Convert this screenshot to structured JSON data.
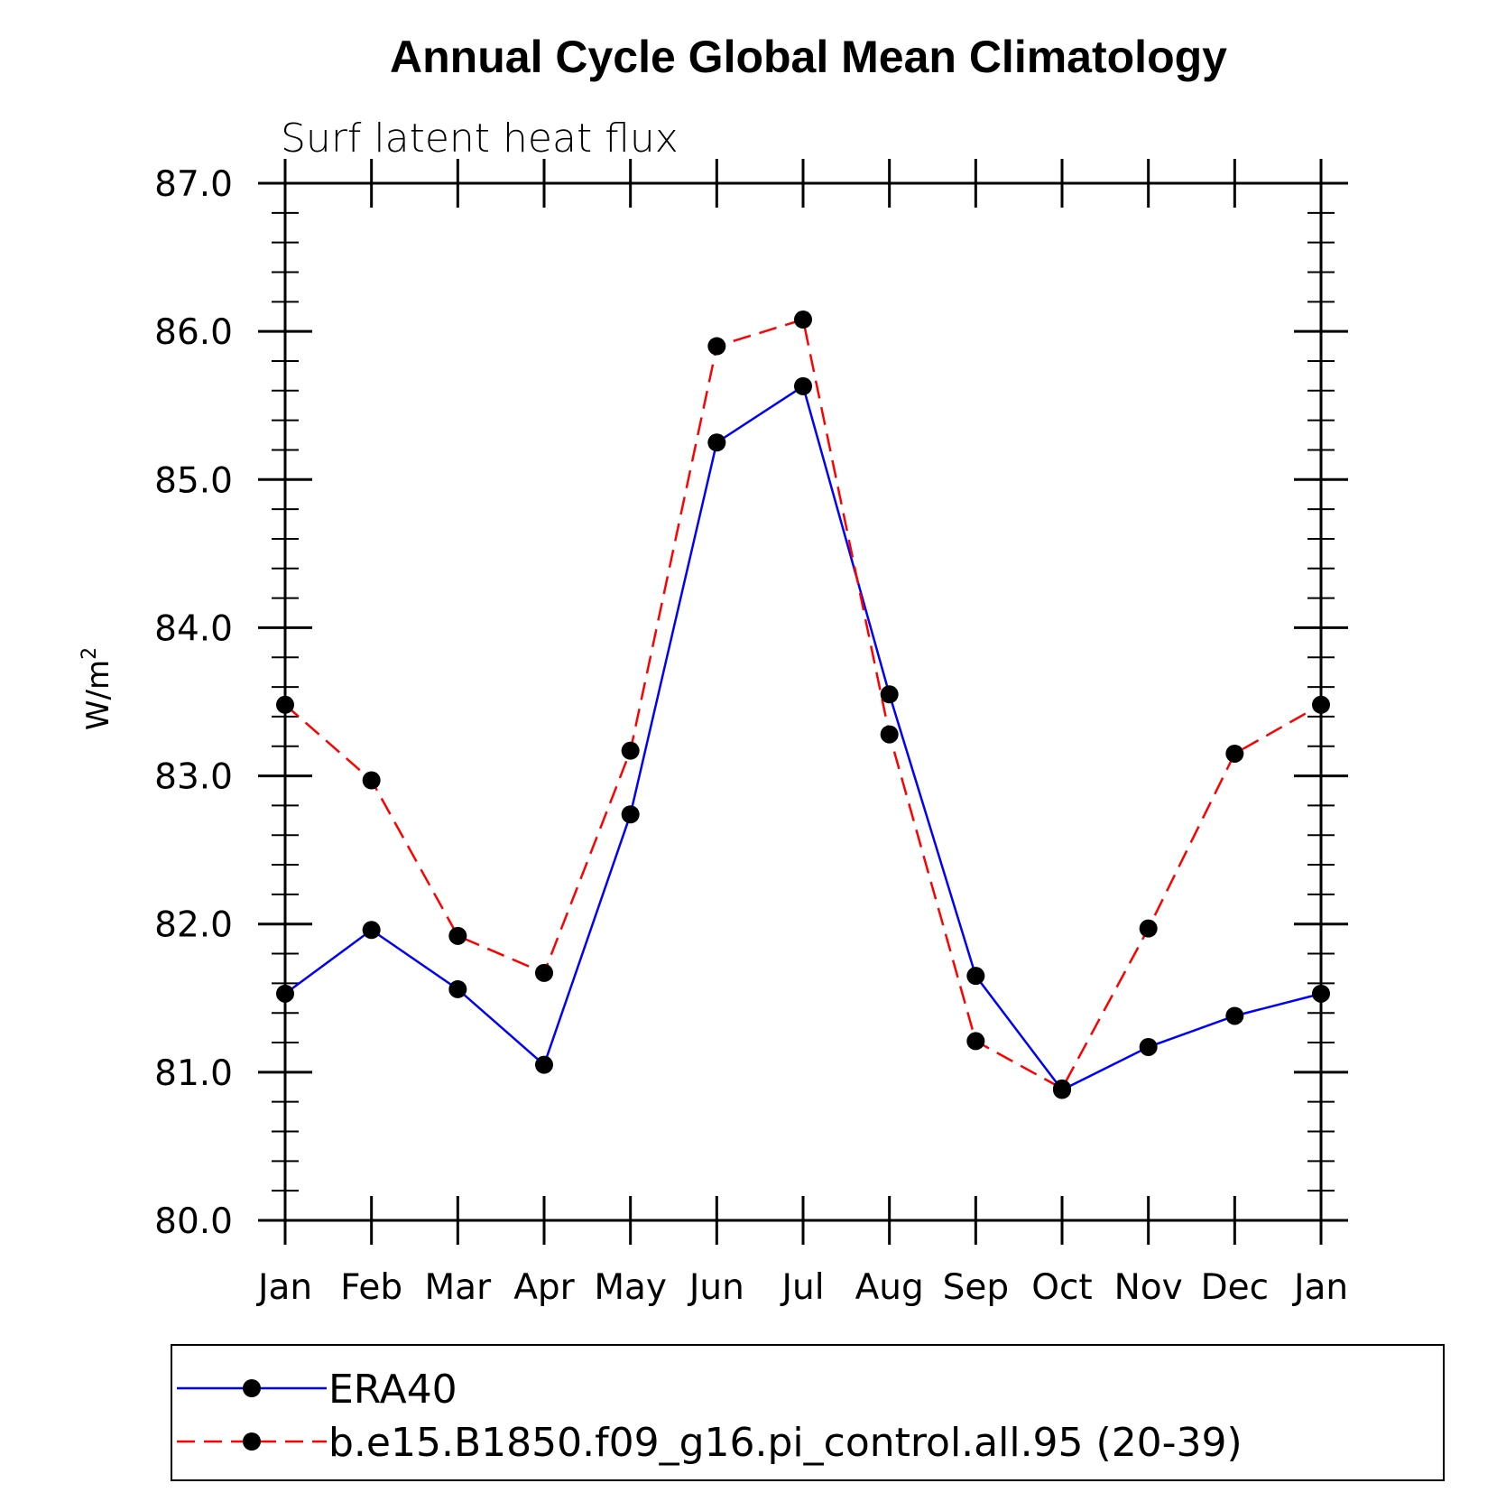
{
  "chart_data": {
    "type": "line",
    "title": "Annual Cycle Global Mean Climatology",
    "subtitle": "Surf latent heat flux",
    "ylabel": "W/m",
    "ylabel_superscript": "2",
    "ylim": [
      80.0,
      87.0
    ],
    "yticks": [
      "80.0",
      "81.0",
      "82.0",
      "83.0",
      "84.0",
      "85.0",
      "86.0",
      "87.0"
    ],
    "categories": [
      "Jan",
      "Feb",
      "Mar",
      "Apr",
      "May",
      "Jun",
      "Jul",
      "Aug",
      "Sep",
      "Oct",
      "Nov",
      "Dec",
      "Jan"
    ],
    "series": [
      {
        "name": "ERA40",
        "color": "#0000ff",
        "dash": "solid",
        "values": [
          81.53,
          81.96,
          81.56,
          81.05,
          82.74,
          85.25,
          85.63,
          83.55,
          81.65,
          80.88,
          81.17,
          81.38,
          81.53
        ]
      },
      {
        "name": "b.e15.B1850.f09_g16.pi_control.all.95 (20-39)",
        "color": "#ff0000",
        "dash": "dashed",
        "values": [
          83.48,
          82.97,
          81.92,
          81.67,
          83.17,
          85.9,
          86.08,
          83.28,
          81.21,
          80.89,
          81.97,
          83.15,
          83.48
        ]
      }
    ],
    "marker": "filled-circle",
    "legend_position": "bottom",
    "grid": false
  }
}
